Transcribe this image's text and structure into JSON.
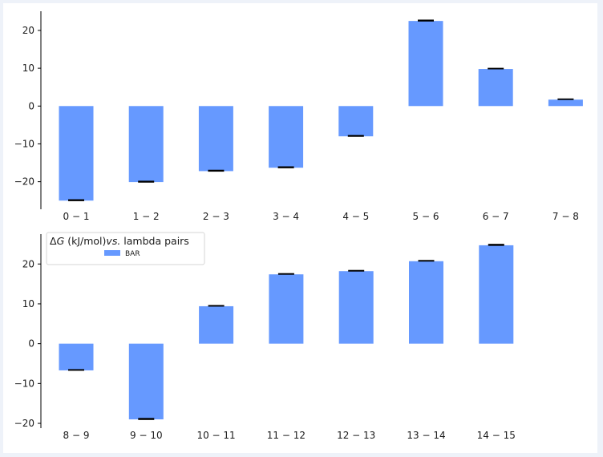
{
  "chart_data": [
    {
      "type": "bar",
      "categories": [
        "0 − 1",
        "1 − 2",
        "2 − 3",
        "3 − 4",
        "4 − 5",
        "5 − 6",
        "6 − 7",
        "7 − 8"
      ],
      "series": [
        {
          "name": "BAR",
          "values": [
            -25.0,
            -20.1,
            -17.2,
            -16.3,
            -8.0,
            22.5,
            9.8,
            1.7
          ],
          "errors": [
            0.25,
            0.25,
            0.25,
            0.25,
            0.25,
            0.25,
            0.2,
            0.2
          ]
        }
      ],
      "yticks": [
        -20,
        -10,
        0,
        10,
        20
      ],
      "ylim": [
        -27.5,
        25.5
      ],
      "xlabel": "",
      "ylabel": "",
      "color": "#6699ff",
      "error_color": "#000000"
    },
    {
      "type": "bar",
      "categories": [
        "8 − 9",
        "9 − 10",
        "10 − 11",
        "11 − 12",
        "12 − 13",
        "13 − 14",
        "14 − 15"
      ],
      "series": [
        {
          "name": "BAR",
          "values": [
            -6.7,
            -19.0,
            9.4,
            17.4,
            18.2,
            20.7,
            24.7
          ],
          "errors": [
            0.2,
            0.25,
            0.2,
            0.2,
            0.2,
            0.2,
            0.25
          ]
        }
      ],
      "yticks": [
        -20,
        -10,
        0,
        10,
        20
      ],
      "ylim": [
        -21,
        27.5
      ],
      "xlabel": "",
      "ylabel": "",
      "color": "#6699ff",
      "error_color": "#000000",
      "legend": {
        "title_prefix": "Δ",
        "title_var": "G",
        "title_mid": " (kJ/mol)",
        "title_vs": "vs.",
        "title_suffix": "  lambda pairs",
        "entries": [
          "BAR"
        ],
        "position": "upper-left"
      }
    }
  ]
}
